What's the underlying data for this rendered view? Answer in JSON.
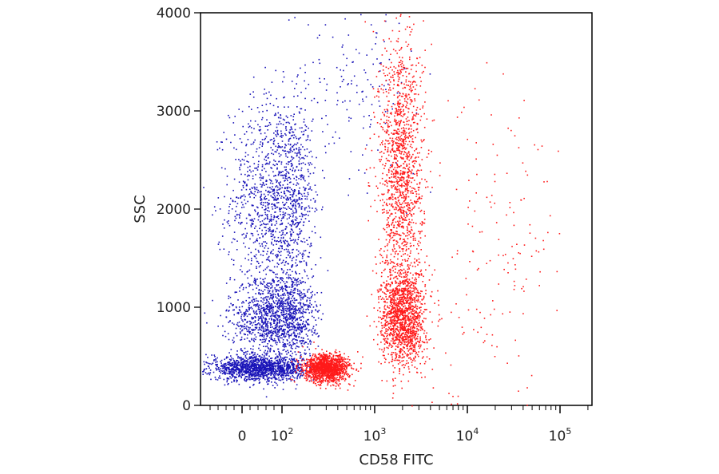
{
  "chart_data": {
    "type": "scatter",
    "title": "",
    "xlabel": "CD58 FITC",
    "ylabel": "SSC",
    "x_scale": "biexponential (log above ~10^2)",
    "ylim": [
      0,
      4000
    ],
    "grid": false,
    "legend": "none",
    "y_ticks": [
      "0",
      "1000",
      "2000",
      "3000",
      "4000"
    ],
    "x_ticks": [
      {
        "base": "0",
        "exp": ""
      },
      {
        "base": "10",
        "exp": "2"
      },
      {
        "base": "10",
        "exp": "3"
      },
      {
        "base": "10",
        "exp": "4"
      },
      {
        "base": "10",
        "exp": "5"
      }
    ],
    "series": [
      {
        "color": "#1a14b8",
        "clusters": [
          {
            "x_center": 90,
            "y_center": 2100,
            "y_spread": 520,
            "count": "dense"
          },
          {
            "x_center": 90,
            "y_center": 900,
            "y_spread": 220,
            "count": "dense"
          },
          {
            "x_center": 40,
            "y_center": 380,
            "y_spread": 60,
            "count": "dense"
          },
          {
            "x_center": 600,
            "y_center": 3300,
            "y_spread": 450,
            "count": "sparse"
          }
        ]
      },
      {
        "color": "#ff1a1a",
        "clusters": [
          {
            "x_center": 1900,
            "y_center": 2400,
            "y_spread": 700,
            "count": "dense"
          },
          {
            "x_center": 2000,
            "y_center": 900,
            "y_spread": 250,
            "count": "dense"
          },
          {
            "x_center": 300,
            "y_center": 380,
            "y_spread": 70,
            "count": "dense"
          },
          {
            "x_center": 20000,
            "y_center": 1800,
            "y_spread": 900,
            "count": "sparse"
          }
        ]
      }
    ]
  }
}
